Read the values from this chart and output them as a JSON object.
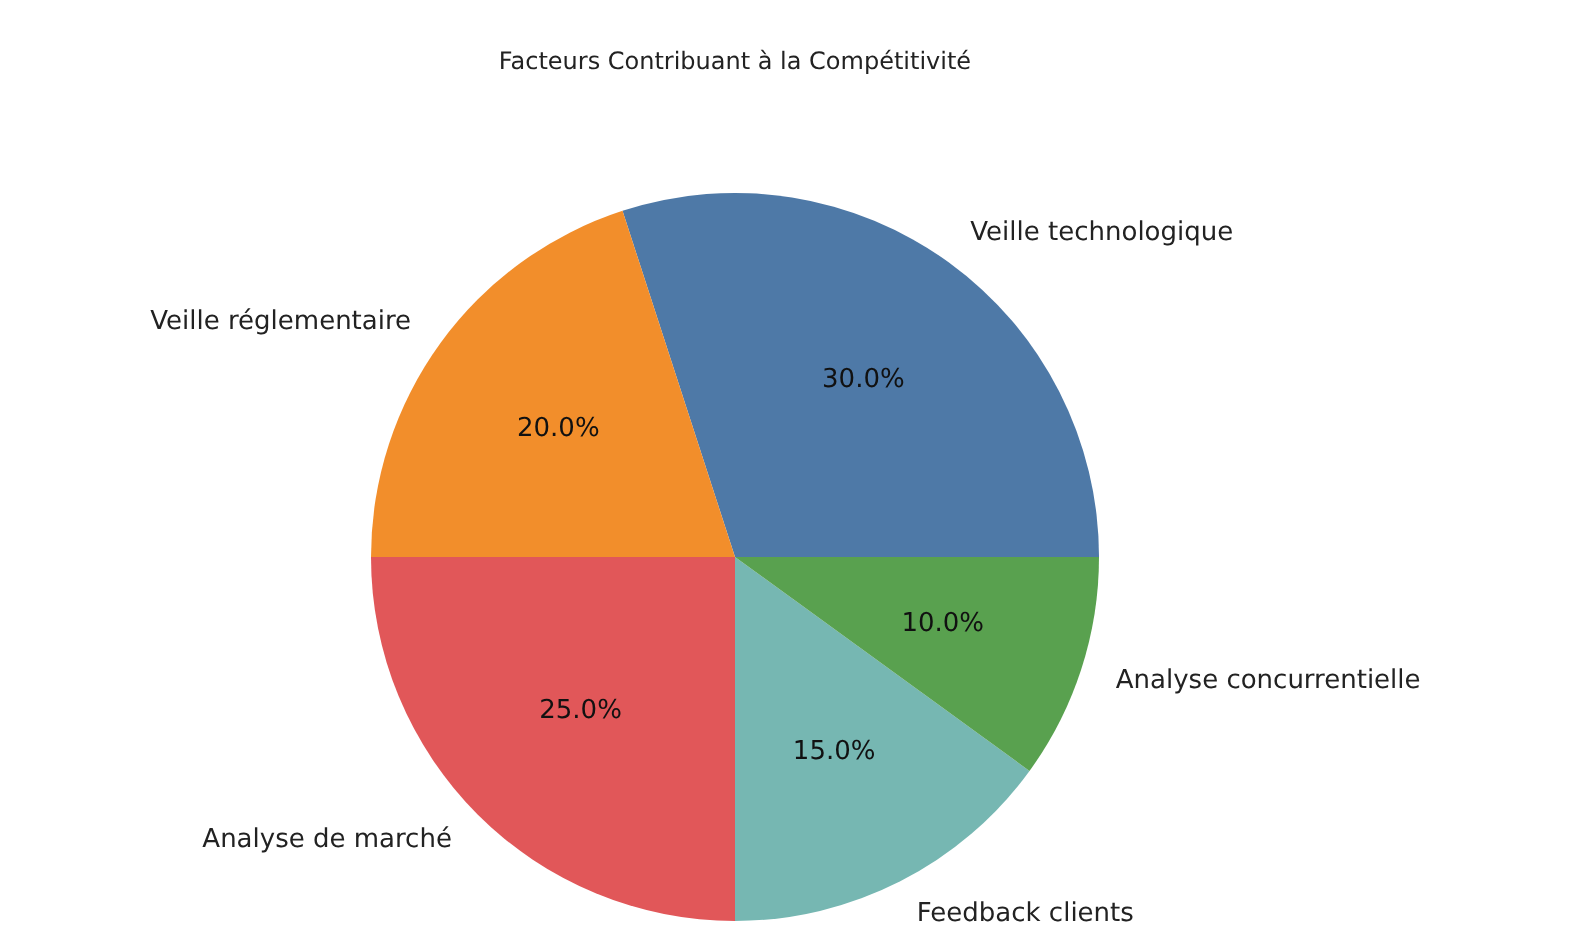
{
  "chart_data": {
    "type": "pie",
    "title": "Facteurs Contribuant à la Compétitivité",
    "categories": [
      "Veille technologique",
      "Veille réglementaire",
      "Analyse de marché",
      "Feedback clients",
      "Analyse concurrentielle"
    ],
    "values": [
      30,
      20,
      25,
      15,
      10
    ],
    "value_labels": [
      "30.0%",
      "20.0%",
      "25.0%",
      "15.0%",
      "10.0%"
    ],
    "colors": [
      "#4e79a7",
      "#f28e2b",
      "#e15759",
      "#76b7b2",
      "#59a14f"
    ]
  }
}
